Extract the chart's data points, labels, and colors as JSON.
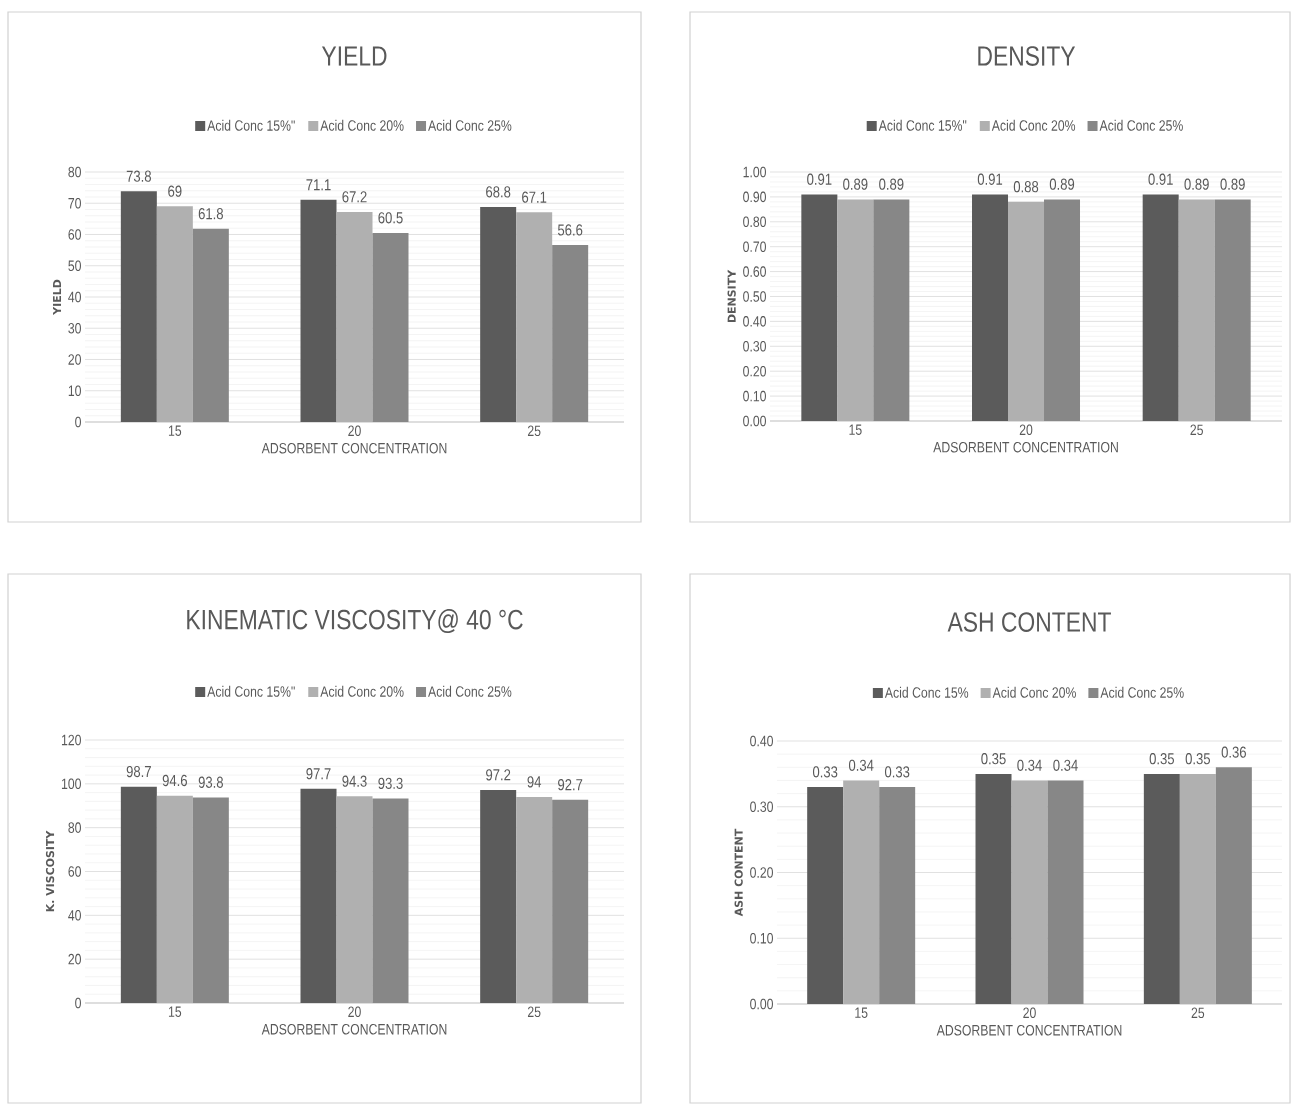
{
  "chart_data": [
    {
      "type": "bar",
      "title": "YIELD",
      "xlabel": "ADSORBENT CONCENTRATION",
      "ylabel": "YIELD",
      "categories": [
        "15",
        "20",
        "25"
      ],
      "series": [
        {
          "name": "Acid Conc 15%\"",
          "color": "#5b5b5b",
          "values": [
            73.8,
            71.1,
            68.8
          ]
        },
        {
          "name": "Acid Conc 20%",
          "color": "#b0b0b0",
          "values": [
            69,
            67.2,
            67.1
          ]
        },
        {
          "name": "Acid Conc 25%",
          "color": "#878787",
          "values": [
            61.8,
            60.5,
            56.6
          ]
        }
      ],
      "ylim": [
        0,
        80
      ],
      "yticks": [
        0,
        10,
        20,
        30,
        40,
        50,
        60,
        70,
        80
      ],
      "grid": "y",
      "legend": "top",
      "data_labels": true
    },
    {
      "type": "bar",
      "title": "DENSITY",
      "xlabel": "ADSORBENT CONCENTRATION",
      "ylabel": "DENSITY",
      "categories": [
        "15",
        "20",
        "25"
      ],
      "series": [
        {
          "name": "Acid Conc 15%\"",
          "color": "#5b5b5b",
          "values": [
            0.91,
            0.91,
            0.91
          ]
        },
        {
          "name": "Acid Conc 20%",
          "color": "#b0b0b0",
          "values": [
            0.89,
            0.88,
            0.89
          ]
        },
        {
          "name": "Acid Conc 25%",
          "color": "#878787",
          "values": [
            0.89,
            0.89,
            0.89
          ]
        }
      ],
      "ylim": [
        0,
        1
      ],
      "yticks": [
        {
          "value": 0,
          "label": "0.00"
        },
        {
          "value": 0.1,
          "label": "0.10"
        },
        {
          "value": 0.2,
          "label": "0.20"
        },
        {
          "value": 0.3,
          "label": "0.30"
        },
        {
          "value": 0.4,
          "label": "0.40"
        },
        {
          "value": 0.5,
          "label": "0.50"
        },
        {
          "value": 0.6,
          "label": "0.60"
        },
        {
          "value": 0.7,
          "label": "0.70"
        },
        {
          "value": 0.8,
          "label": "0.80"
        },
        {
          "value": 0.9,
          "label": "0.90"
        },
        {
          "value": 1,
          "label": "1.00"
        }
      ],
      "grid": "y",
      "legend": "top",
      "data_labels": true
    },
    {
      "type": "bar",
      "title": "KINEMATIC VISCOSITY@ 40 °C",
      "xlabel": "ADSORBENT CONCENTRATION",
      "ylabel": "K. VISCOSITY",
      "categories": [
        "15",
        "20",
        "25"
      ],
      "series": [
        {
          "name": "Acid Conc 15%\"",
          "color": "#5b5b5b",
          "values": [
            98.7,
            97.7,
            97.2
          ]
        },
        {
          "name": "Acid Conc 20%",
          "color": "#b0b0b0",
          "values": [
            94.6,
            94.3,
            94
          ]
        },
        {
          "name": "Acid Conc 25%",
          "color": "#878787",
          "values": [
            93.8,
            93.3,
            92.7
          ]
        }
      ],
      "ylim": [
        0,
        120
      ],
      "yticks": [
        0,
        20,
        40,
        60,
        80,
        100,
        120
      ],
      "grid": "y",
      "legend": "top",
      "data_labels": true
    },
    {
      "type": "bar",
      "title": "ASH CONTENT",
      "xlabel": "ADSORBENT CONCENTRATION",
      "ylabel": "ASH CONTENT",
      "categories": [
        "15",
        "20",
        "25"
      ],
      "series": [
        {
          "name": "Acid Conc 15%",
          "color": "#5b5b5b",
          "values": [
            0.33,
            0.35,
            0.35
          ]
        },
        {
          "name": "Acid Conc 20%",
          "color": "#b0b0b0",
          "values": [
            0.34,
            0.34,
            0.35
          ]
        },
        {
          "name": "Acid Conc 25%",
          "color": "#878787",
          "values": [
            0.33,
            0.34,
            0.36
          ]
        }
      ],
      "ylim": [
        0,
        0.4
      ],
      "yticks": [
        {
          "value": 0,
          "label": "0.00"
        },
        {
          "value": 0.1,
          "label": "0.10"
        },
        {
          "value": 0.2,
          "label": "0.20"
        },
        {
          "value": 0.3,
          "label": "0.30"
        },
        {
          "value": 0.4,
          "label": "0.40"
        }
      ],
      "grid": "y",
      "legend": "top",
      "data_labels": true
    }
  ]
}
